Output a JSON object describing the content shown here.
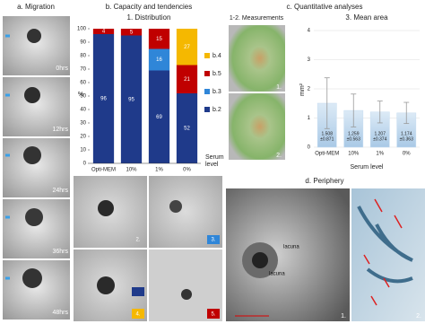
{
  "panel_a": {
    "title": "a. Migration",
    "time_labels": [
      "0hrs",
      "12hrs",
      "24hrs",
      "36hrs",
      "48hrs"
    ]
  },
  "panel_b": {
    "title": "b. Capacity and tendencies",
    "image_labels": [
      "2.",
      "3.",
      "4.",
      "5."
    ]
  },
  "panel_c": {
    "title": "c. Quantitative analyses",
    "measurements_title": "1-2. Measurements",
    "image_labels": [
      "1.",
      "2."
    ]
  },
  "panel_d": {
    "title": "d. Periphery",
    "annotations": [
      "lacuna",
      "lacuna"
    ],
    "image_labels": [
      "1.",
      "2."
    ]
  },
  "chart_data": [
    {
      "type": "stacked_bar",
      "title": "1. Distribution",
      "y_label": "%",
      "x_label": "Serum level",
      "categories": [
        "Opti-MEM",
        "10%",
        "1%",
        "0%"
      ],
      "series": [
        {
          "name": "b.2",
          "color": "#1f3a8a",
          "values": [
            96,
            95,
            69,
            52
          ]
        },
        {
          "name": "b.3",
          "color": "#2f86d8",
          "values": [
            0,
            0,
            16,
            0
          ]
        },
        {
          "name": "b.5",
          "color": "#c00000",
          "values": [
            4,
            5,
            15,
            21
          ]
        },
        {
          "name": "b.4",
          "color": "#f5b800",
          "values": [
            0,
            0,
            0,
            27
          ]
        }
      ],
      "ylim": [
        0,
        100
      ],
      "yticks": [
        0,
        10,
        20,
        30,
        40,
        50,
        60,
        70,
        80,
        90,
        100
      ],
      "grid": false
    },
    {
      "type": "bar",
      "title": "3. Mean area",
      "y_label": "mm²",
      "x_label": "Serum level",
      "categories": [
        "Opti-MEM",
        "10%",
        "1%",
        "0%"
      ],
      "values": [
        1.508,
        1.259,
        1.207,
        1.174
      ],
      "errors": [
        0.871,
        0.563,
        0.374,
        0.363
      ],
      "error_labels": [
        "±0.871",
        "±0.563",
        "±0.374",
        "±0.363"
      ],
      "color": "#c5dcf0",
      "error_color": "#999999",
      "ylim": [
        0,
        4
      ],
      "yticks": [
        0,
        1,
        2,
        3,
        4
      ],
      "grid": true
    }
  ]
}
